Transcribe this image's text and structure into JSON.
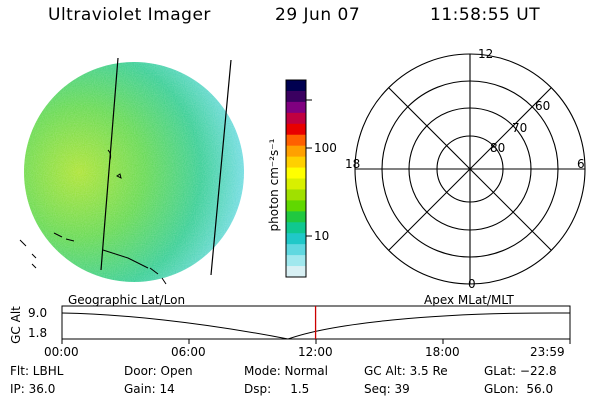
{
  "header": {
    "instrument": "Ultraviolet Imager",
    "date": "29 Jun 07",
    "time": "11:58:55 UT"
  },
  "colorbar": {
    "title": "photon cm⁻²s⁻¹",
    "scale": "log",
    "tick_labels": [
      "100",
      "10"
    ],
    "colors": [
      "#000050",
      "#3a0060",
      "#800080",
      "#c00040",
      "#e80000",
      "#ff6000",
      "#ffa000",
      "#ffd000",
      "#ffff00",
      "#d8f000",
      "#a0e000",
      "#60d800",
      "#20c840",
      "#10c890",
      "#20c8c8",
      "#60d8e0",
      "#a0e8ee",
      "#d8f0f4"
    ]
  },
  "polar_grid": {
    "mlt_labels": [
      "12",
      "18",
      "6",
      "0"
    ],
    "mlat_labels": [
      "60",
      "70",
      "80"
    ]
  },
  "altitude_panel": {
    "left_label": "Geographic Lat/Lon",
    "right_label": "Apex MLat/MLT",
    "axis_label": "GC Alt",
    "y_ticks": [
      "9.0",
      "1.8"
    ],
    "x_ticks": [
      "00:00",
      "06:00",
      "12:00",
      "18:00",
      "23:59"
    ],
    "current_time_hours": 11.98,
    "marker_color": "#cc0000"
  },
  "status": {
    "filter": "Flt: LBHL",
    "ip": "IP: 36.0",
    "door": "Door: Open",
    "gain": "Gain: 14",
    "mode": "Mode: Normal",
    "dsp": "Dsp:     1.5",
    "gc_alt": "GC Alt: 3.5 Re",
    "seq": "Seq: 39",
    "glat": "GLat: −22.8",
    "glon": "GLon:  56.0"
  },
  "icons": {
    "image_disc": "uv-image-icon",
    "polar_plot": "polar-grid-icon"
  }
}
